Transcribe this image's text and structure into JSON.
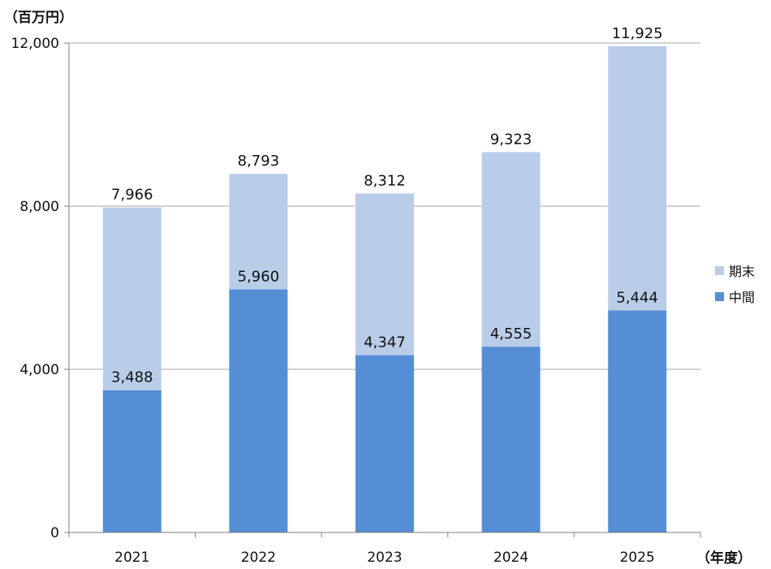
{
  "chart_data": {
    "type": "bar",
    "stacked": true,
    "y_unit_label": "（百万円）",
    "x_unit_label": "（年度）",
    "categories": [
      "2021",
      "2022",
      "2023",
      "2024",
      "2025"
    ],
    "series": [
      {
        "name": "中間",
        "values": [
          3488,
          5960,
          4347,
          4555,
          5444
        ],
        "color": "#558ED5"
      },
      {
        "name": "期末",
        "values": [
          4478,
          2833,
          3965,
          4768,
          6481
        ],
        "color": "#B9CDE8"
      }
    ],
    "interim_labels": [
      "3,488",
      "5,960",
      "4,347",
      "4,555",
      "5,444"
    ],
    "total_labels": [
      "7,966",
      "8,793",
      "8,312",
      "9,323",
      "11,925"
    ],
    "y_ticks": [
      0,
      4000,
      8000,
      12000
    ],
    "y_tick_labels": [
      "0",
      "4,000",
      "8,000",
      "12,000"
    ],
    "ylim": [
      0,
      12000
    ],
    "grid": true,
    "legend_position": "right",
    "legend": [
      "期末",
      "中間"
    ]
  }
}
